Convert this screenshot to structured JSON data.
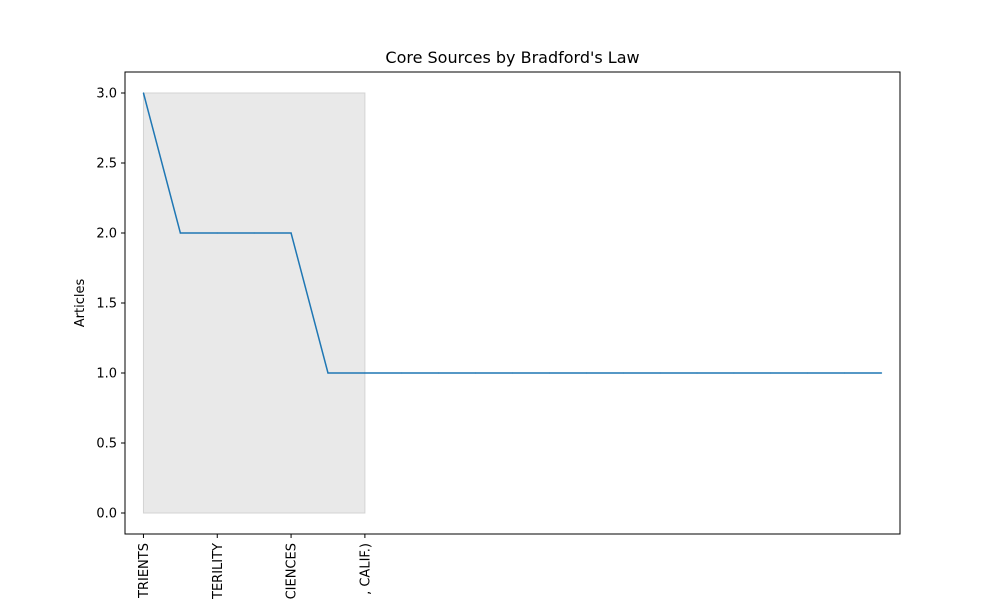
{
  "chart_data": {
    "type": "line",
    "title": "Core Sources by Bradford's Law",
    "xlabel": "",
    "ylabel": "Articles",
    "ylim": [
      -0.15,
      3.15
    ],
    "yticks": [
      0.0,
      0.5,
      1.0,
      1.5,
      2.0,
      2.5,
      3.0
    ],
    "ytick_labels": [
      "0.0",
      "0.5",
      "1.0",
      "1.5",
      "2.0",
      "2.5",
      "3.0"
    ],
    "x_count": 21,
    "xtick_labels": [
      "TRIENTS",
      "TERILITY",
      "CIENCES",
      ", CALIF.)"
    ],
    "xtick_positions": [
      0,
      2,
      4,
      6
    ],
    "series": [
      {
        "values": [
          3,
          2,
          2,
          2,
          2,
          1,
          1,
          1,
          1,
          1,
          1,
          1,
          1,
          1,
          1,
          1,
          1,
          1,
          1,
          1,
          1
        ]
      }
    ],
    "core_zone": {
      "x_start": 0,
      "x_end": 6,
      "y_min": 0,
      "y_max": 3
    },
    "grid": false,
    "colors": {
      "line": "#1f77b4",
      "zone": "#d3d3d3"
    }
  }
}
